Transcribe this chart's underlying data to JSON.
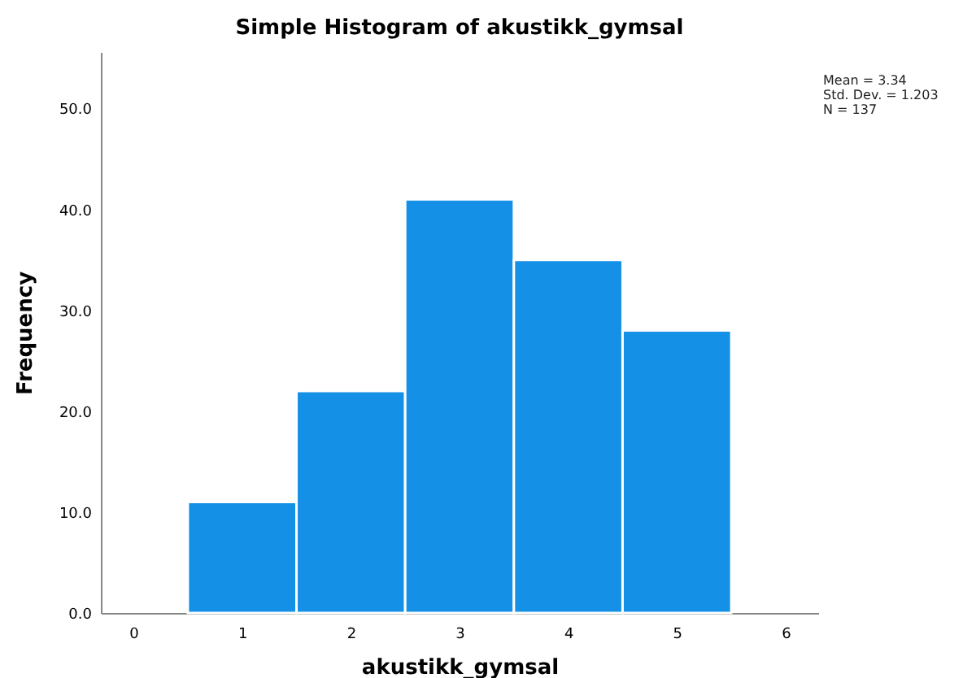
{
  "chart_data": {
    "type": "histogram",
    "title": "Simple Histogram of akustikk_gymsal",
    "xlabel": "akustikk_gymsal",
    "ylabel": "Frequency",
    "bins": [
      0.5,
      1.5,
      2.5,
      3.5,
      4.5,
      5.5
    ],
    "values": [
      11,
      22,
      41,
      35,
      28
    ],
    "color": "#1490e6",
    "xlim": [
      -0.3,
      6.3
    ],
    "xticks": [
      0,
      1,
      2,
      3,
      4,
      5,
      6
    ],
    "ylim": [
      0,
      55.6
    ],
    "yticks": [
      {
        "value": 0,
        "label": "0.0"
      },
      {
        "value": 10,
        "label": "10.0"
      },
      {
        "value": 20,
        "label": "20.0"
      },
      {
        "value": 30,
        "label": "30.0"
      },
      {
        "value": 40,
        "label": "40.0"
      },
      {
        "value": 50,
        "label": "50.0"
      }
    ],
    "annotations": [
      "Mean = 3.34",
      "Std. Dev. = 1.203",
      "N = 137"
    ],
    "grid": false
  }
}
